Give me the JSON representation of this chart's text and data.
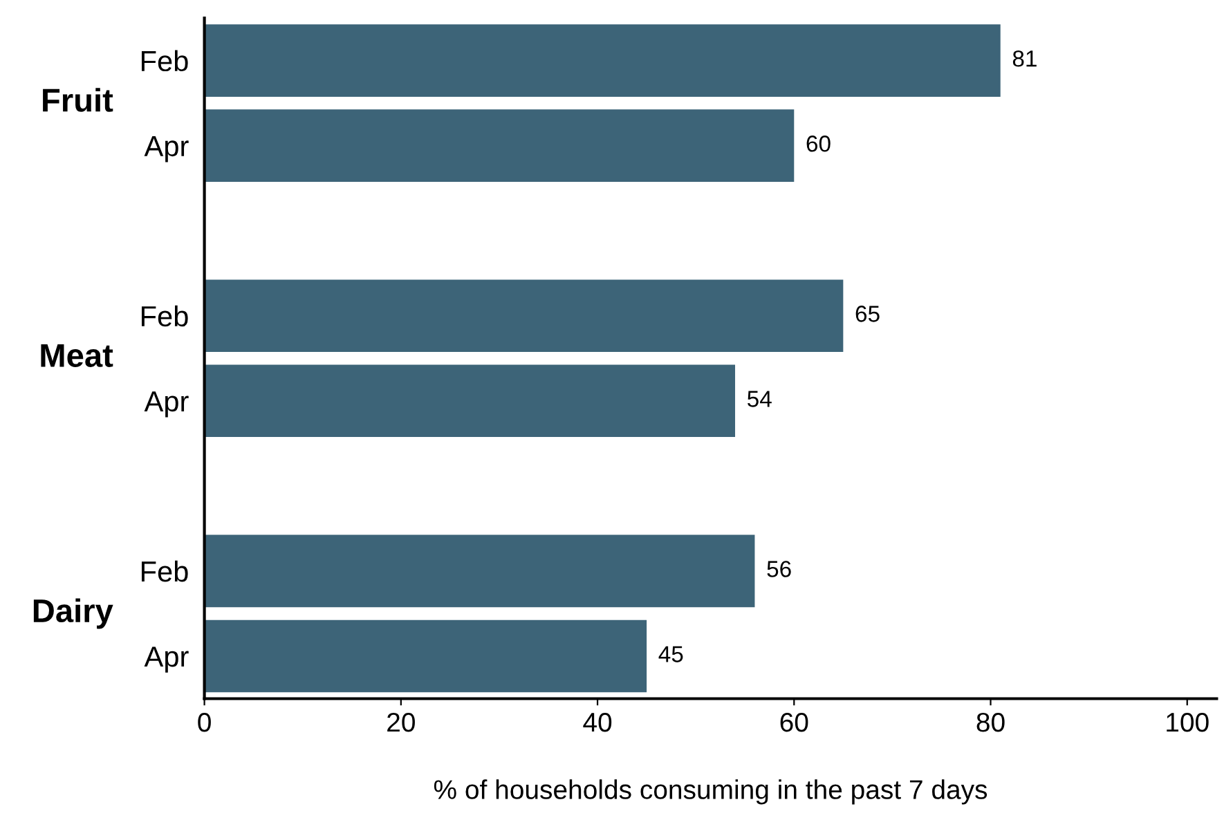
{
  "chart_data": {
    "type": "bar",
    "orientation": "horizontal",
    "categories": [
      "Feb",
      "Apr",
      null,
      "Feb",
      "Apr",
      null,
      "Feb",
      "Apr"
    ],
    "values": [
      81,
      60,
      null,
      65,
      54,
      null,
      56,
      45
    ],
    "color": "#3d6478",
    "data_labels": true,
    "xlim": [
      0,
      103
    ],
    "xticks": [
      0,
      20,
      40,
      60,
      80,
      100
    ],
    "xlabel": "% of households consuming in the past 7 days",
    "annotations": [
      "Fruit",
      "Meat",
      "Dairy"
    ],
    "grid": false,
    "legend": false
  }
}
